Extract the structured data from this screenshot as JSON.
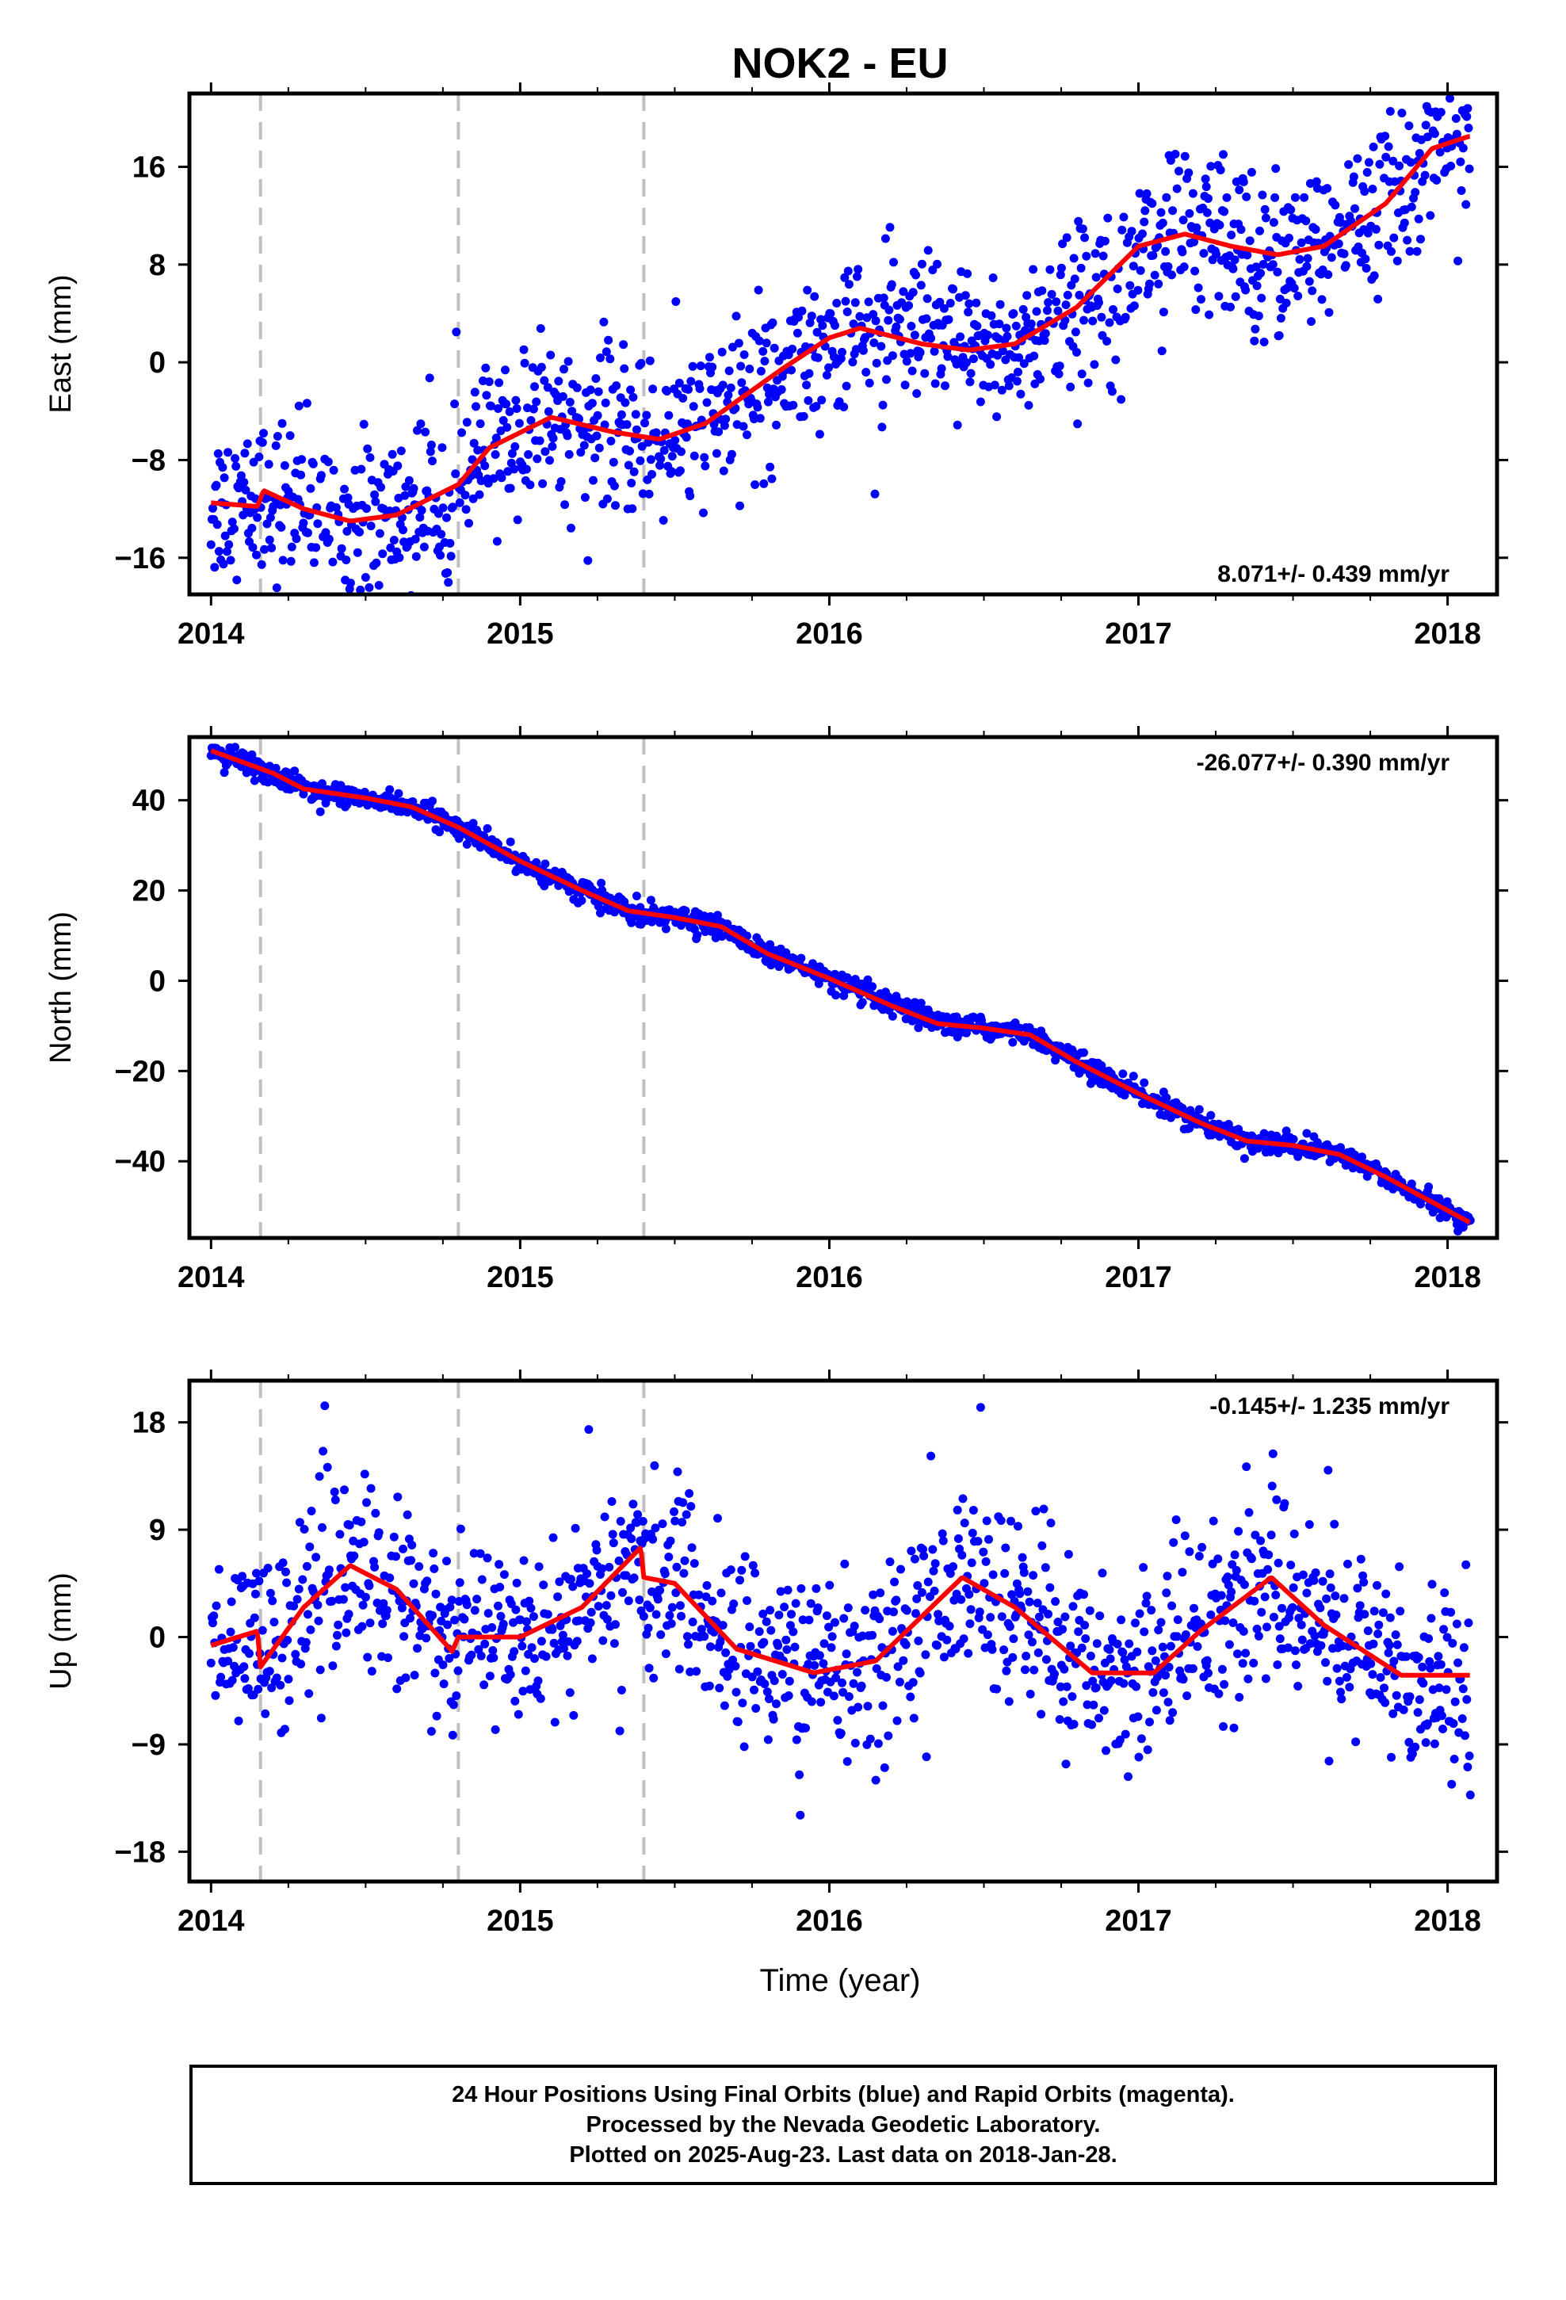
{
  "title": "NOK2 - EU",
  "xlabel": "Time (year)",
  "caption": [
    "24 Hour Positions Using Final Orbits (blue) and Rapid Orbits (magenta).",
    "Processed by the Nevada Geodetic Laboratory.",
    "Plotted on 2025-Aug-23. Last data on 2018-Jan-28."
  ],
  "colors": {
    "points": "#0000ff",
    "model": "#ff0000",
    "steps": "#c0c0c0",
    "frame": "#000000"
  },
  "chart_data": [
    {
      "type": "scatter",
      "name": "east",
      "ylabel": "East (mm)",
      "rate_label": "8.071+/- 0.439 mm/yr",
      "rate_position": "bottom-right",
      "xlim": [
        2013.93,
        2018.16
      ],
      "ylim": [
        -19,
        22
      ],
      "xticks": [
        "2014",
        "2015",
        "2016",
        "2017",
        "2018"
      ],
      "yticks": [
        "16",
        "8",
        "0",
        "-8",
        "-16"
      ],
      "ytick_values": [
        16,
        8,
        0,
        -8,
        -16
      ],
      "step_epochs": [
        2014.16,
        2014.8,
        2015.4
      ],
      "model": [
        [
          2014.0,
          -11.5
        ],
        [
          2014.15,
          -11.8
        ],
        [
          2014.17,
          -10.5
        ],
        [
          2014.3,
          -12.0
        ],
        [
          2014.45,
          -13.0
        ],
        [
          2014.6,
          -12.5
        ],
        [
          2014.8,
          -10.0
        ],
        [
          2014.9,
          -7.0
        ],
        [
          2015.1,
          -4.5
        ],
        [
          2015.3,
          -5.7
        ],
        [
          2015.45,
          -6.3
        ],
        [
          2015.6,
          -5.0
        ],
        [
          2015.85,
          -0.5
        ],
        [
          2016.0,
          2.0
        ],
        [
          2016.1,
          2.8
        ],
        [
          2016.3,
          1.5
        ],
        [
          2016.45,
          1.0
        ],
        [
          2016.6,
          1.5
        ],
        [
          2016.8,
          4.5
        ],
        [
          2017.0,
          9.5
        ],
        [
          2017.15,
          10.5
        ],
        [
          2017.3,
          9.5
        ],
        [
          2017.45,
          8.8
        ],
        [
          2017.6,
          9.5
        ],
        [
          2017.8,
          13.0
        ],
        [
          2017.95,
          17.5
        ],
        [
          2018.07,
          18.5
        ]
      ],
      "scatter": 3.3
    },
    {
      "type": "scatter",
      "name": "north",
      "ylabel": "North (mm)",
      "rate_label": "-26.077+/- 0.390 mm/yr",
      "rate_position": "top-right",
      "xlim": [
        2013.93,
        2018.16
      ],
      "ylim": [
        -57,
        54
      ],
      "xticks": [
        "2014",
        "2015",
        "2016",
        "2017",
        "2018"
      ],
      "yticks": [
        "40",
        "20",
        "0",
        "-20",
        "-40"
      ],
      "ytick_values": [
        40,
        20,
        0,
        -20,
        -40
      ],
      "step_epochs": [
        2014.16,
        2014.8,
        2015.4
      ],
      "model": [
        [
          2014.0,
          51.0
        ],
        [
          2014.2,
          46.0
        ],
        [
          2014.3,
          42.5
        ],
        [
          2014.5,
          40.5
        ],
        [
          2014.65,
          38.5
        ],
        [
          2014.8,
          34.0
        ],
        [
          2015.0,
          26.5
        ],
        [
          2015.2,
          20.0
        ],
        [
          2015.35,
          15.5
        ],
        [
          2015.5,
          14.0
        ],
        [
          2015.65,
          12.0
        ],
        [
          2015.8,
          6.0
        ],
        [
          2016.0,
          0.5
        ],
        [
          2016.2,
          -5.5
        ],
        [
          2016.35,
          -9.5
        ],
        [
          2016.5,
          -10.5
        ],
        [
          2016.65,
          -12.0
        ],
        [
          2016.8,
          -18.0
        ],
        [
          2017.0,
          -25.0
        ],
        [
          2017.2,
          -31.5
        ],
        [
          2017.35,
          -35.5
        ],
        [
          2017.5,
          -36.5
        ],
        [
          2017.65,
          -38.5
        ],
        [
          2017.8,
          -43.5
        ],
        [
          2018.07,
          -53.5
        ]
      ],
      "scatter": 1.2
    },
    {
      "type": "scatter",
      "name": "up",
      "ylabel": "Up (mm)",
      "rate_label": "-0.145+/- 1.235 mm/yr",
      "rate_position": "top-right",
      "xlim": [
        2013.93,
        2018.16
      ],
      "ylim": [
        -20.5,
        21.5
      ],
      "xticks": [
        "2014",
        "2015",
        "2016",
        "2017",
        "2018"
      ],
      "yticks": [
        "18",
        "9",
        "0",
        "-9",
        "-18"
      ],
      "ytick_values": [
        18,
        9,
        0,
        -9,
        -18
      ],
      "step_epochs": [
        2014.16,
        2014.8,
        2015.4
      ],
      "model": [
        [
          2014.0,
          -0.7
        ],
        [
          2014.15,
          0.5
        ],
        [
          2014.16,
          -2.5
        ],
        [
          2014.3,
          2.5
        ],
        [
          2014.45,
          6.0
        ],
        [
          2014.6,
          4.0
        ],
        [
          2014.78,
          -1.2
        ],
        [
          2014.8,
          0.0
        ],
        [
          2015.0,
          0.0
        ],
        [
          2015.2,
          2.5
        ],
        [
          2015.39,
          7.5
        ],
        [
          2015.4,
          5.0
        ],
        [
          2015.5,
          4.5
        ],
        [
          2015.7,
          -1.0
        ],
        [
          2015.95,
          -3.0
        ],
        [
          2016.15,
          -2.0
        ],
        [
          2016.43,
          5.0
        ],
        [
          2016.6,
          2.5
        ],
        [
          2016.85,
          -3.0
        ],
        [
          2017.05,
          -3.0
        ],
        [
          2017.2,
          0.5
        ],
        [
          2017.43,
          5.0
        ],
        [
          2017.6,
          1.0
        ],
        [
          2017.85,
          -3.2
        ],
        [
          2018.07,
          -3.2
        ]
      ],
      "scatter": 4.0
    }
  ]
}
